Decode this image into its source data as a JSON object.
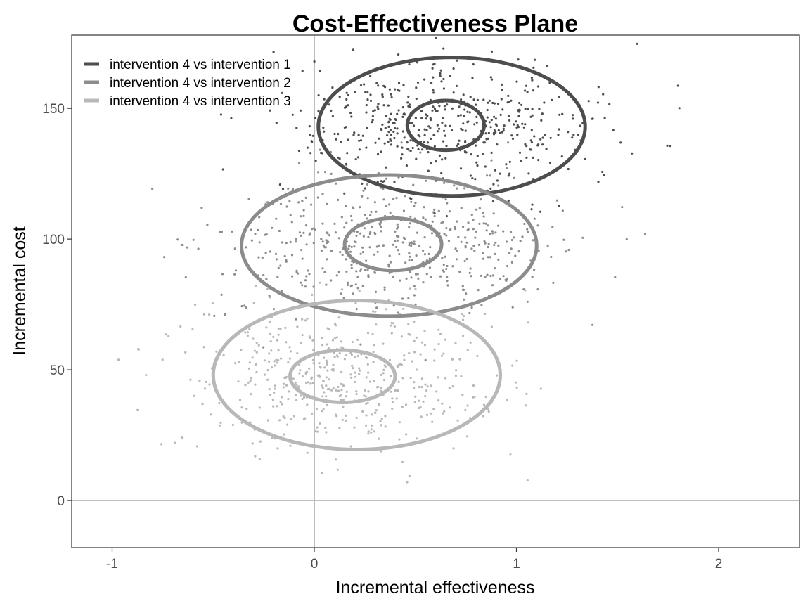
{
  "chart_data": {
    "type": "scatter",
    "title": "Cost-Effectiveness Plane",
    "xlabel": "Incremental effectiveness",
    "ylabel": "Incremental cost",
    "xlim": [
      -1.2,
      2.4
    ],
    "ylim": [
      -18,
      178
    ],
    "x_ticks": [
      -1,
      0,
      1,
      2
    ],
    "y_ticks": [
      0,
      50,
      100,
      150
    ],
    "x_tick_labels": [
      "-1",
      "0",
      "1",
      "2"
    ],
    "y_tick_labels": [
      "0",
      "50",
      "100",
      "150"
    ],
    "grid": false,
    "reference_lines": {
      "x": 0,
      "y": 0,
      "color": "#bdbdbd"
    },
    "legend": {
      "position": "top-left",
      "inside_plot": true
    },
    "series": [
      {
        "name": "intervention 4 vs intervention 1",
        "color": "#4d4d4d",
        "points_mean": [
          0.65,
          143
        ],
        "points_sd": [
          0.38,
          12
        ],
        "points_count": 520,
        "contours": [
          {
            "level": "inner",
            "cx": 0.65,
            "cy": 143.5,
            "rx": 0.19,
            "ry": 9.5
          },
          {
            "level": "outer",
            "cx": 0.68,
            "cy": 143,
            "rx": 0.66,
            "ry": 26.5
          }
        ]
      },
      {
        "name": "intervention 4 vs intervention 2",
        "color": "#8c8c8c",
        "points_mean": [
          0.4,
          98
        ],
        "points_sd": [
          0.42,
          14
        ],
        "points_count": 520,
        "contours": [
          {
            "level": "inner",
            "cx": 0.39,
            "cy": 98,
            "rx": 0.24,
            "ry": 10
          },
          {
            "level": "outer",
            "cx": 0.37,
            "cy": 97.5,
            "rx": 0.73,
            "ry": 27
          }
        ]
      },
      {
        "name": "intervention 4 vs intervention 3",
        "color": "#b8b8b8",
        "points_mean": [
          0.15,
          48
        ],
        "points_sd": [
          0.4,
          14
        ],
        "points_count": 520,
        "contours": [
          {
            "level": "inner",
            "cx": 0.14,
            "cy": 47.5,
            "rx": 0.26,
            "ry": 10
          },
          {
            "level": "outer",
            "cx": 0.21,
            "cy": 48,
            "rx": 0.71,
            "ry": 28.5
          }
        ]
      }
    ]
  }
}
